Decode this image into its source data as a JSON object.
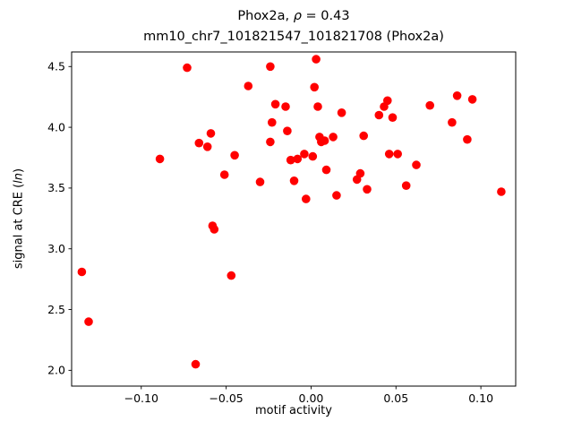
{
  "title": {
    "prefix": "Phox2a, ",
    "rho": "ρ",
    "suffix": " = 0.43"
  },
  "subtitle": "mm10_chr7_101821547_101821708 (Phox2a)",
  "ylabel_parts": {
    "prefix": "signal at CRE (",
    "italic": "ln",
    "suffix": ")"
  },
  "chart_data": {
    "type": "scatter",
    "title": "Phox2a, ρ = 0.43",
    "subtitle": "mm10_chr7_101821547_101821708 (Phox2a)",
    "xlabel": "motif activity",
    "ylabel": "signal at CRE (ln)",
    "xlim": [
      -0.141,
      0.1205
    ],
    "ylim": [
      1.87,
      4.62
    ],
    "grid": false,
    "legend": "none",
    "xticks": {
      "values": [
        -0.1,
        -0.05,
        0.0,
        0.05,
        0.1
      ],
      "labels": [
        "−0.10",
        "−0.05",
        "0.00",
        "0.05",
        "0.10"
      ]
    },
    "yticks": {
      "values": [
        2.0,
        2.5,
        3.0,
        3.5,
        4.0,
        4.5
      ],
      "labels": [
        "2.0",
        "2.5",
        "3.0",
        "3.5",
        "4.0",
        "4.5"
      ]
    },
    "marker": {
      "color": "#ff0000",
      "radius": 4.8
    },
    "points": [
      [
        -0.135,
        2.81
      ],
      [
        -0.131,
        2.4
      ],
      [
        -0.089,
        3.74
      ],
      [
        -0.073,
        4.49
      ],
      [
        -0.068,
        2.05
      ],
      [
        -0.066,
        3.87
      ],
      [
        -0.061,
        3.84
      ],
      [
        -0.059,
        3.95
      ],
      [
        -0.058,
        3.19
      ],
      [
        -0.057,
        3.16
      ],
      [
        -0.051,
        3.61
      ],
      [
        -0.047,
        2.78
      ],
      [
        -0.045,
        3.77
      ],
      [
        -0.037,
        4.34
      ],
      [
        -0.03,
        3.55
      ],
      [
        -0.024,
        4.5
      ],
      [
        -0.024,
        3.88
      ],
      [
        -0.023,
        4.04
      ],
      [
        -0.021,
        4.19
      ],
      [
        -0.015,
        4.17
      ],
      [
        -0.014,
        3.97
      ],
      [
        -0.012,
        3.73
      ],
      [
        -0.01,
        3.56
      ],
      [
        -0.008,
        3.74
      ],
      [
        -0.004,
        3.78
      ],
      [
        -0.003,
        3.41
      ],
      [
        0.001,
        3.76
      ],
      [
        0.002,
        4.33
      ],
      [
        0.003,
        4.56
      ],
      [
        0.004,
        4.17
      ],
      [
        0.005,
        3.92
      ],
      [
        0.006,
        3.88
      ],
      [
        0.008,
        3.89
      ],
      [
        0.009,
        3.65
      ],
      [
        0.013,
        3.92
      ],
      [
        0.015,
        3.44
      ],
      [
        0.018,
        4.12
      ],
      [
        0.027,
        3.57
      ],
      [
        0.029,
        3.62
      ],
      [
        0.031,
        3.93
      ],
      [
        0.033,
        3.49
      ],
      [
        0.04,
        4.1
      ],
      [
        0.043,
        4.17
      ],
      [
        0.045,
        4.22
      ],
      [
        0.046,
        3.78
      ],
      [
        0.048,
        4.08
      ],
      [
        0.051,
        3.78
      ],
      [
        0.056,
        3.52
      ],
      [
        0.062,
        3.69
      ],
      [
        0.07,
        4.18
      ],
      [
        0.083,
        4.04
      ],
      [
        0.086,
        4.26
      ],
      [
        0.092,
        3.9
      ],
      [
        0.095,
        4.23
      ],
      [
        0.112,
        3.47
      ]
    ]
  }
}
